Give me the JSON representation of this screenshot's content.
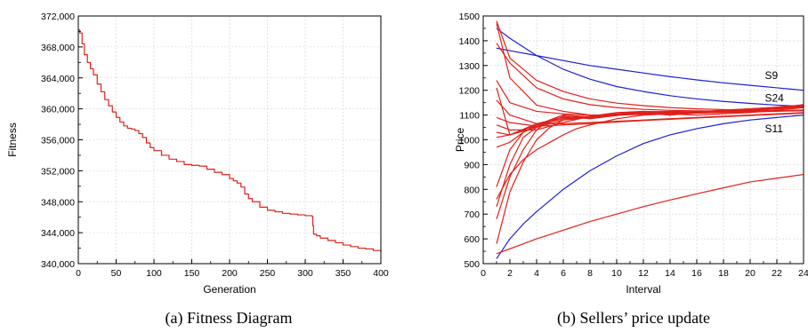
{
  "chart_data": [
    {
      "type": "line",
      "caption": "(a) Fitness Diagram",
      "xlabel": "Generation",
      "ylabel": "Fitness",
      "xlim": [
        0,
        400
      ],
      "ylim": [
        340000,
        372000
      ],
      "xticks": [
        "0",
        "50",
        "100",
        "150",
        "200",
        "250",
        "300",
        "350",
        "400"
      ],
      "yticks": [
        "340,000",
        "344,000",
        "348,000",
        "352,000",
        "356,000",
        "360,000",
        "364,000",
        "368,000",
        "372,000"
      ],
      "grid": true,
      "series": [
        {
          "color": "#e0201b",
          "x": [
            0,
            2,
            5,
            8,
            12,
            16,
            20,
            25,
            30,
            35,
            40,
            45,
            50,
            55,
            60,
            65,
            70,
            75,
            80,
            85,
            90,
            95,
            100,
            110,
            120,
            130,
            140,
            150,
            160,
            170,
            180,
            190,
            200,
            205,
            210,
            215,
            220,
            225,
            230,
            240,
            250,
            260,
            270,
            280,
            290,
            300,
            309,
            310,
            311,
            315,
            320,
            330,
            340,
            350,
            360,
            370,
            380,
            390,
            400
          ],
          "y": [
            370200,
            369800,
            368400,
            367000,
            366000,
            365200,
            364400,
            363200,
            362200,
            361200,
            360400,
            359600,
            358900,
            358300,
            357800,
            357500,
            357400,
            357200,
            356800,
            356300,
            355600,
            355000,
            354600,
            354000,
            353500,
            353200,
            352800,
            352700,
            352600,
            352200,
            351800,
            351500,
            351000,
            350700,
            350400,
            349900,
            349000,
            348400,
            348000,
            347300,
            346900,
            346700,
            346500,
            346400,
            346300,
            346200,
            346100,
            344900,
            343800,
            343600,
            343300,
            343000,
            342700,
            342400,
            342200,
            342000,
            341900,
            341700,
            341500
          ]
        }
      ]
    },
    {
      "type": "line",
      "caption": "(b) Sellers’ price update",
      "xlabel": "Interval",
      "ylabel": "Price",
      "xlim": [
        0,
        24
      ],
      "ylim": [
        500,
        1500
      ],
      "xticks": [
        "0",
        "2",
        "4",
        "6",
        "8",
        "10",
        "12",
        "14",
        "16",
        "18",
        "20",
        "22",
        "24"
      ],
      "yticks": [
        "500",
        "600",
        "700",
        "800",
        "900",
        "1000",
        "1100",
        "1200",
        "1300",
        "1400",
        "1500"
      ],
      "grid": true,
      "annotations": [
        {
          "text": "S9",
          "x": 21.1,
          "y": 1245
        },
        {
          "text": "S24",
          "x": 21.1,
          "y": 1155
        },
        {
          "text": "S11",
          "x": 21.1,
          "y": 1030
        }
      ],
      "series": [
        {
          "color": "#1f1fd6",
          "x": [
            1,
            2,
            4,
            6,
            8,
            10,
            12,
            14,
            16,
            18,
            20,
            22,
            24
          ],
          "y": [
            1370,
            1360,
            1340,
            1320,
            1300,
            1285,
            1270,
            1255,
            1242,
            1230,
            1220,
            1210,
            1200
          ]
        },
        {
          "color": "#1f1fd6",
          "x": [
            1,
            2,
            4,
            6,
            8,
            10,
            12,
            14,
            16,
            18,
            20,
            22,
            24
          ],
          "y": [
            1450,
            1410,
            1340,
            1285,
            1245,
            1215,
            1195,
            1178,
            1165,
            1155,
            1147,
            1140,
            1135
          ]
        },
        {
          "color": "#1f1fd6",
          "x": [
            1,
            2,
            3,
            4,
            6,
            8,
            10,
            12,
            14,
            16,
            18,
            20,
            22,
            24
          ],
          "y": [
            520,
            600,
            660,
            710,
            800,
            875,
            935,
            985,
            1020,
            1045,
            1065,
            1080,
            1090,
            1100
          ]
        },
        {
          "color": "#e0201b",
          "x": [
            1,
            2,
            4,
            6,
            8,
            10,
            12,
            14,
            16,
            18,
            20,
            22,
            24
          ],
          "y": [
            540,
            560,
            600,
            635,
            670,
            700,
            730,
            757,
            782,
            806,
            830,
            845,
            860
          ]
        },
        {
          "color": "#e0201b",
          "x": [
            1,
            2,
            4,
            6,
            8,
            10,
            12,
            14,
            16,
            18,
            20,
            22,
            24
          ],
          "y": [
            1480,
            1330,
            1240,
            1195,
            1165,
            1148,
            1138,
            1130,
            1125,
            1122,
            1120,
            1118,
            1118
          ]
        },
        {
          "color": "#e0201b",
          "x": [
            1,
            2,
            4,
            6,
            8,
            10,
            12,
            14,
            16,
            18,
            20,
            22,
            24
          ],
          "y": [
            1390,
            1310,
            1210,
            1165,
            1142,
            1130,
            1123,
            1119,
            1117,
            1116,
            1116,
            1117,
            1118
          ]
        },
        {
          "color": "#e0201b",
          "x": [
            1,
            2,
            4,
            6,
            8,
            10,
            12,
            14,
            16,
            18,
            20,
            22,
            24
          ],
          "y": [
            1470,
            1250,
            1140,
            1115,
            1100,
            1100,
            1105,
            1108,
            1110,
            1112,
            1115,
            1118,
            1120
          ]
        },
        {
          "color": "#e0201b",
          "x": [
            1,
            2,
            4,
            6,
            8,
            10,
            12,
            14,
            16,
            18,
            20,
            22,
            24
          ],
          "y": [
            1240,
            1150,
            1115,
            1105,
            1100,
            1100,
            1103,
            1106,
            1108,
            1110,
            1112,
            1115,
            1118
          ]
        },
        {
          "color": "#e0201b",
          "x": [
            1,
            2,
            4,
            6,
            8,
            10,
            12,
            14,
            16,
            18,
            20,
            22,
            24
          ],
          "y": [
            1210,
            1020,
            1060,
            1085,
            1090,
            1100,
            1110,
            1105,
            1100,
            1105,
            1110,
            1120,
            1130
          ]
        },
        {
          "color": "#e0201b",
          "x": [
            1,
            2,
            4,
            6,
            8,
            10,
            12,
            14,
            16,
            18,
            20,
            22,
            24
          ],
          "y": [
            1160,
            1100,
            1065,
            1065,
            1070,
            1075,
            1080,
            1085,
            1090,
            1095,
            1100,
            1105,
            1110
          ]
        },
        {
          "color": "#e0201b",
          "x": [
            1,
            2,
            4,
            6,
            8,
            10,
            12,
            14,
            16,
            18,
            20,
            22,
            24
          ],
          "y": [
            1090,
            1070,
            1055,
            1060,
            1065,
            1072,
            1078,
            1083,
            1088,
            1093,
            1098,
            1103,
            1108
          ]
        },
        {
          "color": "#e0201b",
          "x": [
            1,
            2,
            4,
            6,
            8,
            10,
            12,
            14,
            16,
            18,
            20,
            22,
            24
          ],
          "y": [
            1060,
            1040,
            1040,
            1070,
            1095,
            1110,
            1115,
            1112,
            1110,
            1112,
            1118,
            1125,
            1132
          ]
        },
        {
          "color": "#e0201b",
          "x": [
            1,
            2,
            4,
            6,
            8,
            10,
            12,
            14,
            16,
            18,
            20,
            22,
            24
          ],
          "y": [
            1030,
            1020,
            1050,
            1080,
            1090,
            1100,
            1108,
            1110,
            1112,
            1115,
            1120,
            1128,
            1135
          ]
        },
        {
          "color": "#e0201b",
          "x": [
            1,
            2,
            4,
            6,
            8,
            10,
            12,
            14,
            16,
            18,
            20,
            22,
            24
          ],
          "y": [
            1010,
            1020,
            1065,
            1090,
            1095,
            1105,
            1112,
            1115,
            1113,
            1118,
            1122,
            1130,
            1140
          ]
        },
        {
          "color": "#e0201b",
          "x": [
            1,
            2,
            3,
            4,
            6,
            8,
            10,
            12,
            14,
            16,
            18,
            20,
            22,
            24
          ],
          "y": [
            970,
            990,
            1030,
            1060,
            1100,
            1090,
            1105,
            1115,
            1108,
            1112,
            1118,
            1125,
            1130,
            1142
          ]
        },
        {
          "color": "#e0201b",
          "x": [
            1,
            2,
            3,
            4,
            5,
            6,
            8,
            10,
            12,
            14,
            16,
            18,
            20,
            22,
            24
          ],
          "y": [
            810,
            960,
            1030,
            1055,
            1070,
            1095,
            1085,
            1098,
            1110,
            1100,
            1112,
            1120,
            1125,
            1132,
            1140
          ]
        },
        {
          "color": "#e0201b",
          "x": [
            1,
            2,
            3,
            4,
            5,
            6,
            8,
            10,
            12,
            14,
            16,
            18,
            20,
            22,
            24
          ],
          "y": [
            730,
            900,
            1010,
            1050,
            1080,
            1090,
            1088,
            1100,
            1108,
            1105,
            1110,
            1115,
            1122,
            1130,
            1138
          ]
        },
        {
          "color": "#e0201b",
          "x": [
            1,
            2,
            3,
            4,
            5,
            6,
            8,
            10,
            12,
            14,
            16,
            18,
            20,
            22,
            24
          ],
          "y": [
            680,
            850,
            960,
            1040,
            1080,
            1100,
            1092,
            1102,
            1112,
            1108,
            1114,
            1118,
            1124,
            1132,
            1140
          ]
        },
        {
          "color": "#e0201b",
          "x": [
            1,
            2,
            3,
            4,
            5,
            6,
            8,
            10,
            12,
            14,
            16,
            18,
            20,
            22,
            24
          ],
          "y": [
            580,
            790,
            910,
            1000,
            1050,
            1080,
            1095,
            1105,
            1110,
            1100,
            1110,
            1118,
            1125,
            1130,
            1136
          ]
        },
        {
          "color": "#e0201b",
          "x": [
            1,
            2,
            3,
            4,
            5,
            6,
            7,
            8,
            10,
            12,
            14,
            16,
            18,
            20,
            22,
            24
          ],
          "y": [
            760,
            860,
            920,
            960,
            990,
            1020,
            1045,
            1060,
            1085,
            1100,
            1105,
            1108,
            1112,
            1118,
            1125,
            1132
          ]
        }
      ]
    }
  ]
}
